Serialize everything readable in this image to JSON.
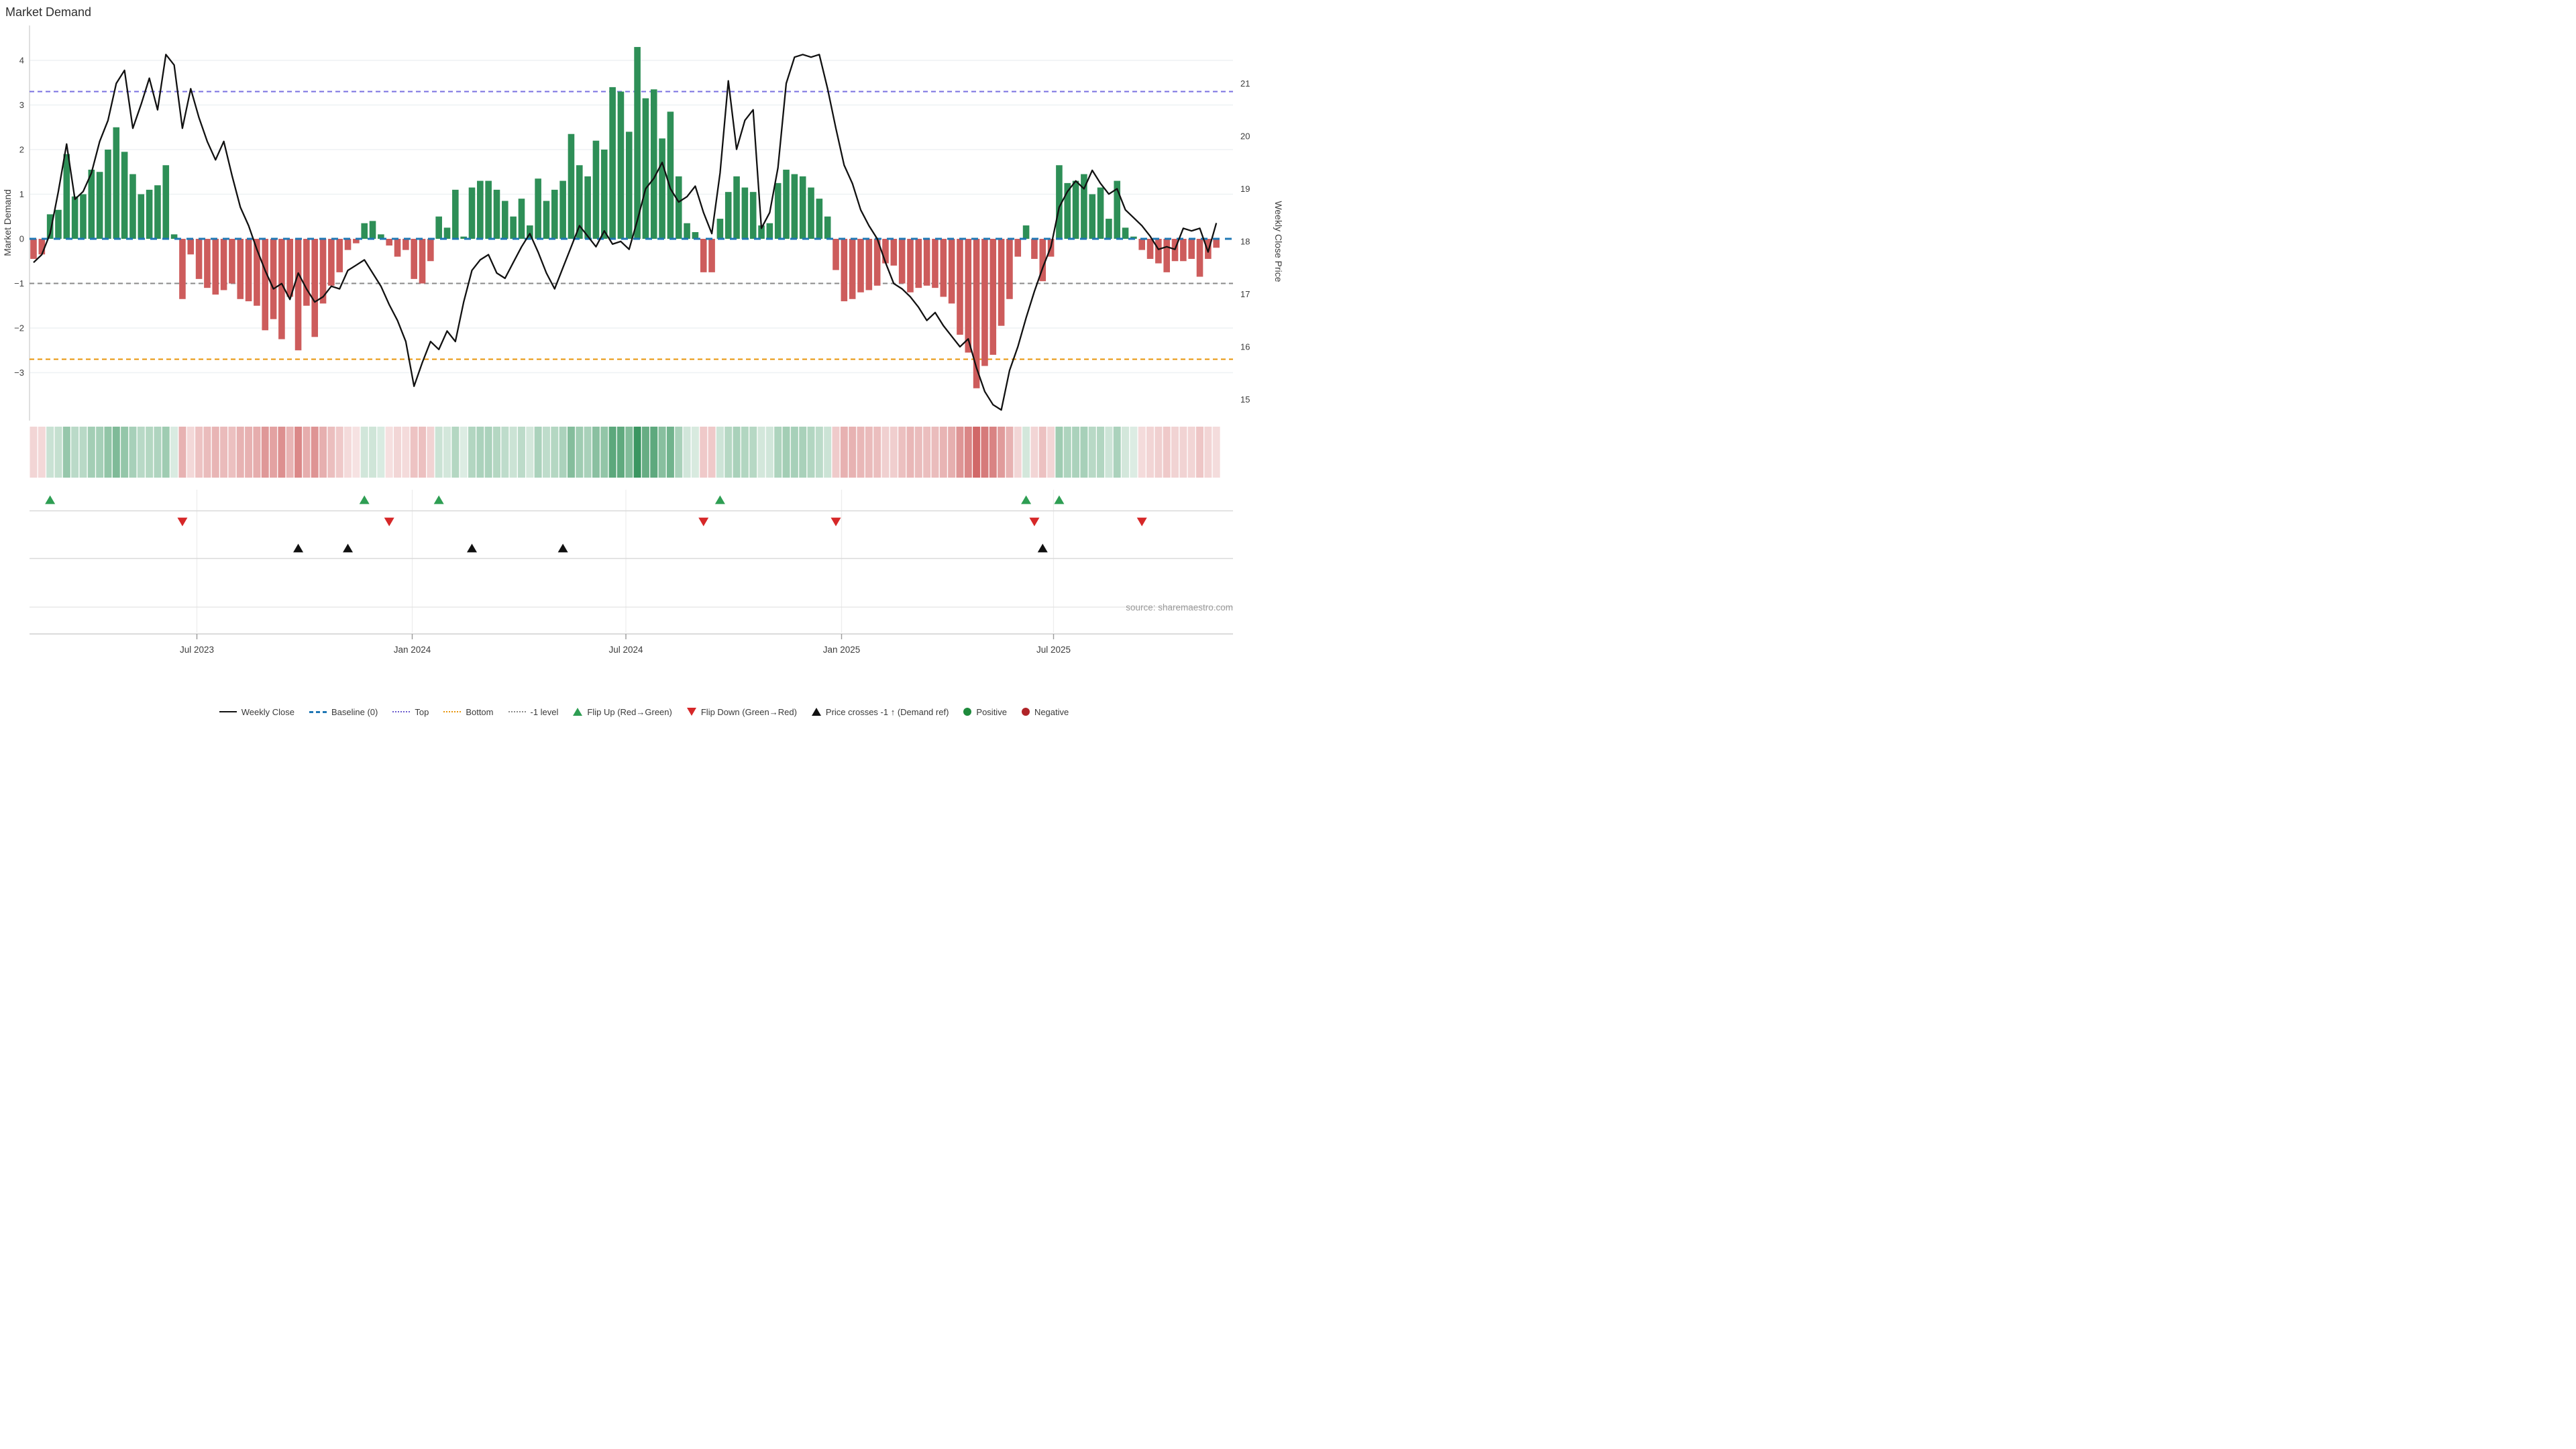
{
  "page": {
    "title": "Market Demand",
    "source": "source: sharemaestro.com"
  },
  "chart_data": {
    "type": "combo-bar-line-heatmap",
    "title": "Market Demand",
    "left_axis": {
      "label": "Market Demand",
      "ticks": [
        4,
        3,
        2,
        1,
        0,
        -1,
        -2,
        -3
      ],
      "range": [
        -3.7,
        4.6
      ]
    },
    "right_axis": {
      "label": "Weekly Close Price",
      "ticks": [
        21,
        20,
        19,
        18,
        17,
        16,
        15
      ],
      "range": [
        14.6,
        21.8
      ]
    },
    "x_tick_labels": [
      "Jul 2023",
      "Jan 2024",
      "Jul 2024",
      "Jan 2025",
      "Jul 2025"
    ],
    "x_tick_weeks": [
      20,
      46,
      72,
      98,
      124
    ],
    "reference_lines": {
      "baseline": 0,
      "top": 3.3,
      "bottom": -2.7,
      "minus_one_level": -1
    },
    "series": [
      {
        "name": "Market Demand (weekly bars)",
        "type": "bar",
        "values": [
          -0.45,
          -0.35,
          0.55,
          0.65,
          1.9,
          0.95,
          1.0,
          1.55,
          1.5,
          2.0,
          2.5,
          1.95,
          1.45,
          1.0,
          1.1,
          1.2,
          1.65,
          0.1,
          -1.35,
          -0.35,
          -0.9,
          -1.1,
          -1.25,
          -1.15,
          -1.0,
          -1.35,
          -1.4,
          -1.5,
          -2.05,
          -1.8,
          -2.25,
          -1.3,
          -2.5,
          -1.5,
          -2.2,
          -1.45,
          -1.05,
          -0.75,
          -0.25,
          -0.1,
          0.35,
          0.4,
          0.1,
          -0.15,
          -0.4,
          -0.25,
          -0.9,
          -1.0,
          -0.5,
          0.5,
          0.25,
          1.1,
          0.05,
          1.15,
          1.3,
          1.3,
          1.1,
          0.85,
          0.5,
          0.9,
          0.3,
          1.35,
          0.85,
          1.1,
          1.3,
          2.35,
          1.65,
          1.4,
          2.2,
          2.0,
          3.4,
          3.3,
          2.4,
          4.3,
          3.15,
          3.35,
          2.25,
          2.85,
          1.4,
          0.35,
          0.15,
          -0.75,
          -0.75,
          0.45,
          1.05,
          1.4,
          1.15,
          1.05,
          0.3,
          0.35,
          1.25,
          1.55,
          1.45,
          1.4,
          1.15,
          0.9,
          0.5,
          -0.7,
          -1.4,
          -1.35,
          -1.2,
          -1.15,
          -1.05,
          -0.55,
          -0.6,
          -1.0,
          -1.2,
          -1.1,
          -1.05,
          -1.1,
          -1.3,
          -1.45,
          -2.15,
          -2.55,
          -3.35,
          -2.85,
          -2.6,
          -1.95,
          -1.35,
          -0.4,
          0.3,
          -0.45,
          -0.95,
          -0.4,
          1.65,
          1.25,
          1.3,
          1.45,
          1.0,
          1.15,
          0.45,
          1.3,
          0.25,
          0.05,
          -0.25,
          -0.45,
          -0.55,
          -0.75,
          -0.5,
          -0.5,
          -0.45,
          -0.85,
          -0.45,
          -0.2
        ]
      },
      {
        "name": "Weekly Close",
        "type": "line",
        "values": [
          17.6,
          17.75,
          18.15,
          18.95,
          19.85,
          18.8,
          18.95,
          19.3,
          19.9,
          20.3,
          21.0,
          21.25,
          20.15,
          20.6,
          21.1,
          20.5,
          21.55,
          21.35,
          20.15,
          20.9,
          20.35,
          19.9,
          19.55,
          19.9,
          19.25,
          18.65,
          18.3,
          17.85,
          17.45,
          17.1,
          17.2,
          16.9,
          17.4,
          17.1,
          16.85,
          16.95,
          17.15,
          17.1,
          17.45,
          17.55,
          17.65,
          17.4,
          17.15,
          16.8,
          16.5,
          16.1,
          15.25,
          15.7,
          16.1,
          15.95,
          16.3,
          16.1,
          16.85,
          17.45,
          17.65,
          17.75,
          17.4,
          17.3,
          17.6,
          17.9,
          18.15,
          17.8,
          17.4,
          17.1,
          17.5,
          17.9,
          18.3,
          18.1,
          17.9,
          18.2,
          17.95,
          18.0,
          17.85,
          18.4,
          19.0,
          19.2,
          19.5,
          19.0,
          18.75,
          18.85,
          19.05,
          18.55,
          18.15,
          19.3,
          21.05,
          19.75,
          20.3,
          20.5,
          18.25,
          18.55,
          19.4,
          21.0,
          21.5,
          21.55,
          21.5,
          21.55,
          20.9,
          20.15,
          19.45,
          19.1,
          18.6,
          18.3,
          18.05,
          17.6,
          17.2,
          17.1,
          16.95,
          16.75,
          16.5,
          16.65,
          16.4,
          16.2,
          16.0,
          16.15,
          15.6,
          15.15,
          14.9,
          14.8,
          15.55,
          16.0,
          16.55,
          17.05,
          17.5,
          17.9,
          18.65,
          18.95,
          19.15,
          19.0,
          19.35,
          19.1,
          18.9,
          19.0,
          18.6,
          18.45,
          18.3,
          18.1,
          17.85,
          17.9,
          17.85,
          18.25,
          18.2,
          18.25,
          17.8,
          18.35
        ]
      }
    ],
    "heatmap": {
      "description": "weekly demand intensity strip, green=positive red=negative"
    },
    "markers": {
      "flip_up_weeks": [
        2,
        40,
        49,
        83,
        120,
        124
      ],
      "flip_down_weeks": [
        18,
        43,
        81,
        97,
        121,
        134
      ],
      "price_cross_weeks": [
        32,
        38,
        53,
        64,
        122
      ]
    },
    "legend": [
      {
        "label": "Weekly Close",
        "glyph": "line",
        "color": "#111111"
      },
      {
        "label": "Baseline (0)",
        "glyph": "dash",
        "color": "#1f77b4"
      },
      {
        "label": "Top",
        "glyph": "dot",
        "color": "#6a5acd"
      },
      {
        "label": "Bottom",
        "glyph": "dot",
        "color": "#e8940a"
      },
      {
        "label": "-1 level",
        "glyph": "dot",
        "color": "#8a8a8a"
      },
      {
        "label": "Flip Up (Red→Green)",
        "glyph": "tri-up",
        "color": "#2e9e53"
      },
      {
        "label": "Flip Down (Green→Red)",
        "glyph": "tri-down",
        "color": "#d62728"
      },
      {
        "label": "Price crosses -1 ↑ (Demand ref)",
        "glyph": "tri-up",
        "color": "#111111"
      },
      {
        "label": "Positive",
        "glyph": "circle",
        "color": "#1e8a3c"
      },
      {
        "label": "Negative",
        "glyph": "circle",
        "color": "#b02428"
      }
    ],
    "colors": {
      "bar_positive": "#2e8f57",
      "bar_negative": "#cd5c5c",
      "price_line": "#111111",
      "baseline": "#1f77b4",
      "top_line": "#7a70e0",
      "bottom_line": "#e8940a",
      "minus_one_line": "#8a8a8a",
      "gridline": "#eef1f4",
      "panel_line": "#d9d9d9",
      "axis_text": "#3d3d3d",
      "source_text": "#9a9a9a"
    },
    "source": "source: sharemaestro.com",
    "grid": true,
    "legend_position": "bottom"
  }
}
